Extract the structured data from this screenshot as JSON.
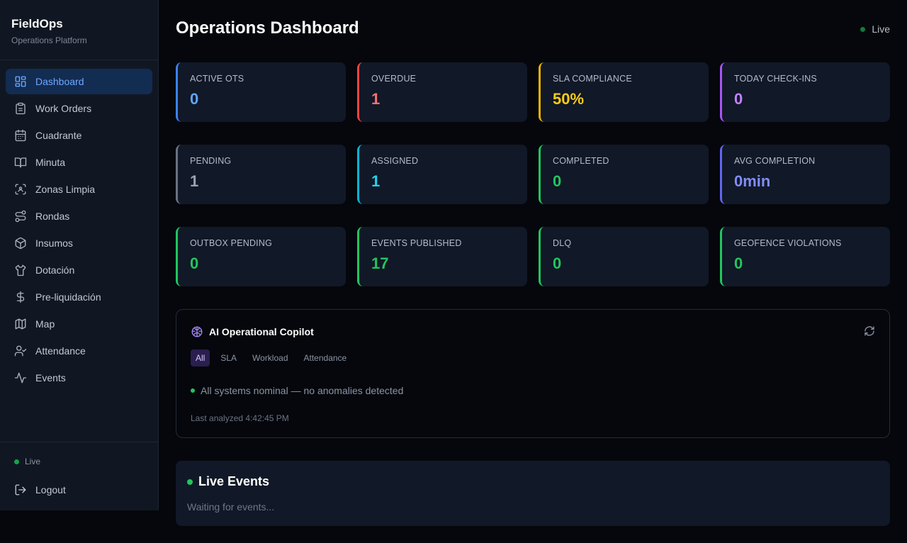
{
  "brand": {
    "title": "FieldOps",
    "subtitle": "Operations Platform"
  },
  "nav": [
    {
      "label": "Dashboard",
      "icon": "dashboard-icon",
      "active": true
    },
    {
      "label": "Work Orders",
      "icon": "clipboard-icon"
    },
    {
      "label": "Cuadrante",
      "icon": "calendar-icon"
    },
    {
      "label": "Minuta",
      "icon": "book-icon"
    },
    {
      "label": "Zonas Limpia",
      "icon": "scan-icon"
    },
    {
      "label": "Rondas",
      "icon": "route-icon"
    },
    {
      "label": "Insumos",
      "icon": "package-icon"
    },
    {
      "label": "Dotación",
      "icon": "shirt-icon"
    },
    {
      "label": "Pre-liquidación",
      "icon": "dollar-icon"
    },
    {
      "label": "Map",
      "icon": "map-icon"
    },
    {
      "label": "Attendance",
      "icon": "user-check-icon"
    },
    {
      "label": "Events",
      "icon": "activity-icon"
    }
  ],
  "sidebar_footer": {
    "live_label": "Live",
    "logout_label": "Logout"
  },
  "header": {
    "title": "Operations Dashboard",
    "live_label": "Live"
  },
  "cards": [
    {
      "label": "ACTIVE OTS",
      "value": "0",
      "color": "#3b82f6",
      "value_color": "#60a5fa"
    },
    {
      "label": "OVERDUE",
      "value": "1",
      "color": "#ef4444",
      "value_color": "#f87171"
    },
    {
      "label": "SLA COMPLIANCE",
      "value": "50%",
      "color": "#eab308",
      "value_color": "#facc15"
    },
    {
      "label": "TODAY CHECK-INS",
      "value": "0",
      "color": "#a855f7",
      "value_color": "#c084fc"
    },
    {
      "label": "PENDING",
      "value": "1",
      "color": "#6b7280",
      "value_color": "#9ca3af"
    },
    {
      "label": "ASSIGNED",
      "value": "1",
      "color": "#06b6d4",
      "value_color": "#22d3ee"
    },
    {
      "label": "COMPLETED",
      "value": "0",
      "color": "#22c55e",
      "value_color": "#22c55e"
    },
    {
      "label": "AVG COMPLETION",
      "value": "0min",
      "color": "#6366f1",
      "value_color": "#818cf8"
    },
    {
      "label": "OUTBOX PENDING",
      "value": "0",
      "color": "#22c55e",
      "value_color": "#22c55e"
    },
    {
      "label": "EVENTS PUBLISHED",
      "value": "17",
      "color": "#22c55e",
      "value_color": "#22c55e"
    },
    {
      "label": "DLQ",
      "value": "0",
      "color": "#22c55e",
      "value_color": "#22c55e"
    },
    {
      "label": "GEOFENCE VIOLATIONS",
      "value": "0",
      "color": "#22c55e",
      "value_color": "#22c55e"
    }
  ],
  "copilot": {
    "title": "AI Operational Copilot",
    "tabs": [
      {
        "label": "All",
        "active": true
      },
      {
        "label": "SLA"
      },
      {
        "label": "Workload"
      },
      {
        "label": "Attendance"
      }
    ],
    "status": "All systems nominal — no anomalies detected",
    "last_analyzed": "Last analyzed 4:42:45 PM"
  },
  "live_events": {
    "title": "Live Events",
    "empty": "Waiting for events..."
  }
}
